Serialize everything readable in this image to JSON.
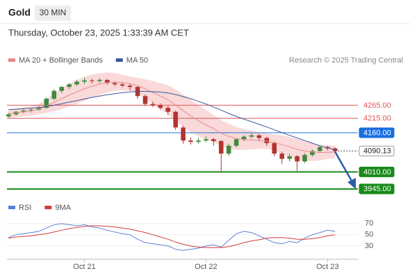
{
  "header": {
    "symbol": "Gold",
    "timeframe": "30 MIN",
    "datetime": "Thursday, October 23, 2025 1:33:39 AM CET"
  },
  "chart_data": [
    {
      "type": "candlestick",
      "credit": "Research © 2025 Trading Central",
      "up_color": "#3f8a3f",
      "down_color": "#b3342f",
      "xlim": [
        -0.2,
        46
      ],
      "ylim": [
        3910,
        4415
      ],
      "ohlc": [
        [
          4222,
          4236,
          4218,
          4230
        ],
        [
          4230,
          4244,
          4226,
          4240
        ],
        [
          4240,
          4250,
          4234,
          4245
        ],
        [
          4245,
          4252,
          4238,
          4248
        ],
        [
          4248,
          4262,
          4244,
          4255
        ],
        [
          4255,
          4296,
          4252,
          4290
        ],
        [
          4290,
          4326,
          4284,
          4320
        ],
        [
          4320,
          4340,
          4312,
          4335
        ],
        [
          4335,
          4350,
          4326,
          4345
        ],
        [
          4345,
          4362,
          4338,
          4355
        ],
        [
          4355,
          4370,
          4346,
          4360
        ],
        [
          4360,
          4366,
          4348,
          4358
        ],
        [
          4358,
          4368,
          4350,
          4362
        ],
        [
          4362,
          4365,
          4344,
          4350
        ],
        [
          4350,
          4356,
          4338,
          4345
        ],
        [
          4345,
          4352,
          4334,
          4340
        ],
        [
          4340,
          4346,
          4322,
          4335
        ],
        [
          4335,
          4338,
          4290,
          4300
        ],
        [
          4300,
          4306,
          4262,
          4270
        ],
        [
          4270,
          4280,
          4258,
          4265
        ],
        [
          4265,
          4272,
          4248,
          4255
        ],
        [
          4255,
          4262,
          4228,
          4240
        ],
        [
          4240,
          4244,
          4170,
          4180
        ],
        [
          4180,
          4186,
          4118,
          4130
        ],
        [
          4130,
          4142,
          4115,
          4125
        ],
        [
          4125,
          4140,
          4118,
          4130
        ],
        [
          4130,
          4146,
          4124,
          4135
        ],
        [
          4135,
          4140,
          4110,
          4128
        ],
        [
          4128,
          4132,
          4008,
          4080
        ],
        [
          4080,
          4118,
          4072,
          4110
        ],
        [
          4110,
          4140,
          4104,
          4135
        ],
        [
          4135,
          4150,
          4128,
          4145
        ],
        [
          4145,
          4160,
          4138,
          4150
        ],
        [
          4150,
          4155,
          4130,
          4140
        ],
        [
          4140,
          4144,
          4110,
          4120
        ],
        [
          4120,
          4126,
          4070,
          4080
        ],
        [
          4080,
          4088,
          4040,
          4060
        ],
        [
          4060,
          4080,
          4050,
          4070
        ],
        [
          4070,
          4074,
          4014,
          4050
        ],
        [
          4050,
          4082,
          4044,
          4075
        ],
        [
          4075,
          4096,
          4068,
          4090
        ],
        [
          4090,
          4112,
          4084,
          4105
        ],
        [
          4105,
          4110,
          4092,
          4100
        ],
        [
          4100,
          4104,
          4086,
          4090.13
        ]
      ],
      "series": [
        {
          "name": "MA 20 + Bollinger Bands",
          "color": "#e88a8a",
          "band_color": "#f6c9c9",
          "values": [
            4232,
            4236,
            4240,
            4244,
            4250,
            4262,
            4276,
            4290,
            4304,
            4316,
            4328,
            4338,
            4346,
            4352,
            4354,
            4352,
            4348,
            4340,
            4328,
            4314,
            4300,
            4286,
            4266,
            4244,
            4224,
            4206,
            4190,
            4176,
            4158,
            4146,
            4138,
            4134,
            4132,
            4130,
            4128,
            4122,
            4114,
            4106,
            4096,
            4090,
            4086,
            4084,
            4085,
            4086
          ],
          "upper": [
            4247,
            4252,
            4257,
            4262,
            4270,
            4288,
            4310,
            4330,
            4348,
            4362,
            4374,
            4382,
            4388,
            4390,
            4388,
            4382,
            4376,
            4370,
            4364,
            4358,
            4350,
            4341,
            4326,
            4306,
            4286,
            4266,
            4246,
            4228,
            4208,
            4194,
            4182,
            4174,
            4168,
            4162,
            4158,
            4154,
            4150,
            4144,
            4136,
            4128,
            4120,
            4114,
            4111,
            4110
          ],
          "lower": [
            4217,
            4220,
            4223,
            4226,
            4230,
            4236,
            4242,
            4250,
            4260,
            4270,
            4282,
            4294,
            4304,
            4314,
            4320,
            4322,
            4320,
            4310,
            4292,
            4270,
            4250,
            4231,
            4206,
            4182,
            4162,
            4146,
            4134,
            4124,
            4108,
            4098,
            4094,
            4094,
            4096,
            4098,
            4098,
            4090,
            4078,
            4068,
            4056,
            4052,
            4052,
            4054,
            4059,
            4062
          ]
        },
        {
          "name": "MA 50",
          "color": "#3b5a9a",
          "values": [
            4248,
            4250,
            4252,
            4254,
            4256,
            4260,
            4265,
            4271,
            4277,
            4283,
            4289,
            4295,
            4300,
            4305,
            4309,
            4313,
            4316,
            4318,
            4318,
            4317,
            4315,
            4312,
            4306,
            4298,
            4290,
            4280,
            4270,
            4258,
            4246,
            4234,
            4222,
            4212,
            4202,
            4192,
            4182,
            4171,
            4160,
            4150,
            4140,
            4130,
            4120,
            4110,
            4102,
            4095
          ]
        }
      ],
      "levels": [
        {
          "value": 4265,
          "label": "4265.00",
          "color": "#e05555",
          "style": "thin"
        },
        {
          "value": 4215,
          "label": "4215.00",
          "color": "#e05555",
          "style": "thin"
        },
        {
          "value": 4160,
          "label": "4160.00",
          "color": "#1a6fe0",
          "style": "box"
        },
        {
          "value": 4090.13,
          "label": "4090.13",
          "color": "#444444",
          "style": "current"
        },
        {
          "value": 4010,
          "label": "4010.00",
          "color": "#1a8a1a",
          "style": "thick"
        },
        {
          "value": 3945,
          "label": "3945.00",
          "color": "#1a8a1a",
          "style": "thick"
        }
      ]
    },
    {
      "type": "line",
      "xlim": [
        -0.2,
        46
      ],
      "ylim": [
        10,
        82
      ],
      "yticks": [
        70,
        50,
        30
      ],
      "xticks": [
        {
          "value": 10,
          "label": "Oct 21"
        },
        {
          "value": 26,
          "label": "Oct 22"
        },
        {
          "value": 42,
          "label": "Oct 23"
        }
      ],
      "series": [
        {
          "name": "RSI",
          "color": "#5b7fd6",
          "values": [
            45,
            50,
            52,
            54,
            56,
            62,
            68,
            70,
            68,
            66,
            68,
            64,
            62,
            58,
            55,
            52,
            50,
            42,
            36,
            34,
            32,
            30,
            24,
            22,
            24,
            26,
            30,
            32,
            28,
            40,
            52,
            56,
            54,
            48,
            42,
            36,
            34,
            38,
            36,
            44,
            50,
            54,
            58,
            56
          ]
        },
        {
          "name": "9MA",
          "color": "#d23a3a",
          "values": [
            44,
            46,
            47,
            48,
            50,
            52,
            55,
            58,
            61,
            63,
            65,
            66,
            66,
            65,
            64,
            62,
            60,
            57,
            54,
            50,
            46,
            42,
            37,
            33,
            30,
            28,
            27,
            27,
            27,
            29,
            32,
            36,
            39,
            41,
            44,
            45,
            45,
            44,
            42,
            42,
            43,
            45,
            48,
            50
          ]
        }
      ]
    }
  ]
}
